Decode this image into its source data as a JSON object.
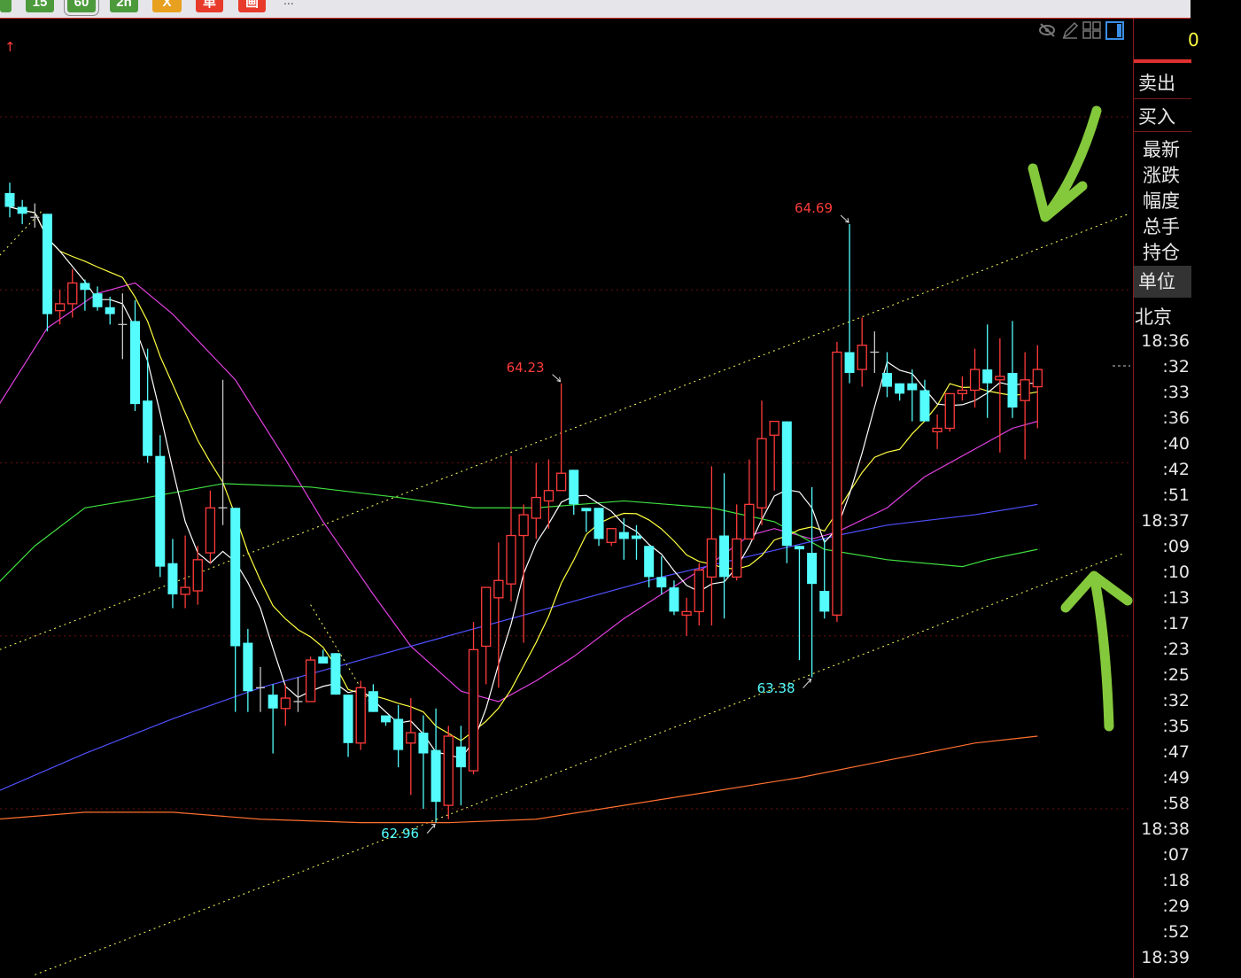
{
  "toolbar": {
    "buttons": [
      {
        "label": "",
        "color": "green"
      },
      {
        "label": "15",
        "color": "green"
      },
      {
        "label": "60",
        "color": "green",
        "selected": true
      },
      {
        "label": "2h",
        "color": "green"
      },
      {
        "label": "X",
        "color": "orange"
      },
      {
        "label": "单",
        "color": "red"
      },
      {
        "label": "画",
        "color": "red"
      }
    ],
    "more": "..."
  },
  "chart_icons": [
    "eye-slash-icon",
    "pencil-icon",
    "grid-icon",
    "panel-toggle-icon"
  ],
  "up_marker": "↑",
  "side_panel": {
    "top_value": "0",
    "sell": "卖出",
    "buy": "买入",
    "fields": [
      "最新",
      "涨跌",
      "幅度",
      "总手",
      "持仓"
    ],
    "unit": "单位",
    "region": "北京",
    "times": [
      "18:36",
      ":32",
      ":33",
      ":36",
      ":40",
      ":42",
      ":51",
      "18:37",
      ":09",
      ":10",
      ":13",
      ":17",
      ":23",
      ":25",
      ":32",
      ":35",
      ":47",
      ":49",
      ":58",
      "18:38",
      ":07",
      ":18",
      ":29",
      ":52",
      "18:39"
    ]
  },
  "colors": {
    "up": "#ff3b3b",
    "down": "#54fcfc",
    "doji": "#c8c8c8",
    "ma5": "#ffffff",
    "ma10": "#ffff40",
    "ma20": "#e040e0",
    "ma_green": "#40e040",
    "ma_blue": "#5050ff",
    "ma_orange": "#ff7030",
    "grid": "#6a1010",
    "trend": "#ffff60",
    "annotation": "#84c83c"
  },
  "chart_data": {
    "type": "candlestick",
    "ylim": [
      62.5,
      65.05
    ],
    "grid_levels": [
      65.0,
      64.5,
      64.0,
      63.5,
      63.0
    ],
    "candles_ohlc": [
      [
        64.78,
        64.81,
        64.71,
        64.74
      ],
      [
        64.74,
        64.76,
        64.69,
        64.72
      ],
      [
        64.71,
        64.75,
        64.68,
        64.71
      ],
      [
        64.72,
        64.72,
        64.38,
        64.43
      ],
      [
        64.44,
        64.5,
        64.4,
        64.46
      ],
      [
        64.46,
        64.56,
        64.42,
        64.52
      ],
      [
        64.52,
        64.53,
        64.44,
        64.5
      ],
      [
        64.49,
        64.51,
        64.44,
        64.45
      ],
      [
        64.45,
        64.48,
        64.4,
        64.43
      ],
      [
        64.4,
        64.49,
        64.3,
        64.4
      ],
      [
        64.41,
        64.47,
        64.15,
        64.17
      ],
      [
        64.18,
        64.33,
        64.0,
        64.02
      ],
      [
        64.02,
        64.08,
        63.67,
        63.7
      ],
      [
        63.71,
        63.78,
        63.58,
        63.62
      ],
      [
        63.62,
        63.79,
        63.58,
        63.64
      ],
      [
        63.63,
        63.76,
        63.59,
        63.72
      ],
      [
        63.74,
        63.92,
        63.71,
        63.87
      ],
      [
        63.87,
        64.24,
        63.82,
        63.87
      ],
      [
        63.87,
        63.87,
        63.28,
        63.47
      ],
      [
        63.48,
        63.52,
        63.28,
        63.34
      ],
      [
        63.35,
        63.41,
        63.28,
        63.35
      ],
      [
        63.33,
        63.36,
        63.16,
        63.29
      ],
      [
        63.29,
        63.36,
        63.24,
        63.32
      ],
      [
        63.31,
        63.38,
        63.28,
        63.31
      ],
      [
        63.31,
        63.44,
        63.31,
        63.43
      ],
      [
        63.44,
        63.46,
        63.42,
        63.42
      ],
      [
        63.45,
        63.45,
        63.33,
        63.33
      ],
      [
        63.33,
        63.33,
        63.15,
        63.19
      ],
      [
        63.19,
        63.37,
        63.17,
        63.35
      ],
      [
        63.34,
        63.36,
        63.28,
        63.28
      ],
      [
        63.27,
        63.27,
        63.24,
        63.25
      ],
      [
        63.26,
        63.3,
        63.12,
        63.17
      ],
      [
        63.19,
        63.32,
        63.04,
        63.22
      ],
      [
        63.22,
        63.27,
        63.0,
        63.16
      ],
      [
        63.17,
        63.29,
        62.96,
        63.02
      ],
      [
        63.01,
        63.24,
        62.97,
        63.21
      ],
      [
        63.18,
        63.24,
        63.01,
        63.12
      ],
      [
        63.11,
        63.54,
        63.1,
        63.46
      ],
      [
        63.47,
        63.64,
        63.36,
        63.64
      ],
      [
        63.61,
        63.77,
        63.35,
        63.66
      ],
      [
        63.65,
        64.02,
        63.6,
        63.79
      ],
      [
        63.79,
        63.88,
        63.48,
        63.85
      ],
      [
        63.84,
        64.0,
        63.78,
        63.9
      ],
      [
        63.89,
        64.01,
        63.81,
        63.92
      ],
      [
        63.92,
        64.23,
        63.92,
        63.97
      ],
      [
        63.98,
        63.98,
        63.85,
        63.88
      ],
      [
        63.87,
        63.87,
        63.8,
        63.86
      ],
      [
        63.87,
        63.87,
        63.76,
        63.78
      ],
      [
        63.77,
        63.81,
        63.76,
        63.81
      ],
      [
        63.8,
        63.84,
        63.72,
        63.78
      ],
      [
        63.79,
        63.82,
        63.72,
        63.78
      ],
      [
        63.76,
        63.76,
        63.64,
        63.67
      ],
      [
        63.67,
        63.73,
        63.62,
        63.64
      ],
      [
        63.64,
        63.66,
        63.56,
        63.57
      ],
      [
        63.56,
        63.61,
        63.5,
        63.57
      ],
      [
        63.57,
        63.71,
        63.53,
        63.69
      ],
      [
        63.67,
        63.99,
        63.53,
        63.78
      ],
      [
        63.79,
        63.97,
        63.55,
        63.67
      ],
      [
        63.67,
        63.88,
        63.66,
        63.78
      ],
      [
        63.78,
        64.01,
        63.78,
        63.88
      ],
      [
        63.87,
        64.18,
        63.82,
        64.07
      ],
      [
        64.08,
        64.12,
        63.92,
        64.12
      ],
      [
        64.12,
        64.12,
        63.71,
        63.76
      ],
      [
        63.76,
        63.76,
        63.43,
        63.75
      ],
      [
        63.74,
        63.93,
        63.38,
        63.65
      ],
      [
        63.63,
        63.78,
        63.55,
        63.57
      ],
      [
        63.56,
        64.35,
        63.54,
        64.32
      ],
      [
        64.32,
        64.69,
        64.23,
        64.26
      ],
      [
        64.27,
        64.42,
        64.22,
        64.34
      ],
      [
        64.32,
        64.38,
        64.26,
        64.32
      ],
      [
        64.26,
        64.32,
        64.19,
        64.22
      ],
      [
        64.23,
        64.23,
        64.18,
        64.2
      ],
      [
        64.23,
        64.27,
        64.12,
        64.21
      ],
      [
        64.21,
        64.24,
        64.12,
        64.12
      ],
      [
        64.09,
        64.14,
        64.04,
        64.1
      ],
      [
        64.1,
        64.2,
        64.09,
        64.2
      ],
      [
        64.2,
        64.25,
        64.18,
        64.21
      ],
      [
        64.21,
        64.33,
        64.16,
        64.27
      ],
      [
        64.27,
        64.4,
        64.13,
        64.23
      ],
      [
        64.24,
        64.36,
        64.03,
        64.25
      ],
      [
        64.26,
        64.41,
        64.13,
        64.16
      ],
      [
        64.18,
        64.32,
        64.01,
        64.24
      ],
      [
        64.22,
        64.34,
        64.1,
        64.27
      ]
    ],
    "ma_lines": [
      {
        "color_key": "ma20",
        "points": [
          [
            0,
            64.16
          ],
          [
            4,
            64.39
          ],
          [
            8,
            64.49
          ],
          [
            11,
            64.52
          ],
          [
            14,
            64.43
          ],
          [
            19,
            64.24
          ],
          [
            23,
            64.01
          ],
          [
            26,
            63.83
          ],
          [
            30,
            63.62
          ],
          [
            33,
            63.47
          ],
          [
            37,
            63.34
          ],
          [
            40,
            63.31
          ],
          [
            43,
            63.37
          ],
          [
            46,
            63.44
          ],
          [
            50,
            63.55
          ],
          [
            53,
            63.62
          ],
          [
            57,
            63.71
          ],
          [
            60,
            63.79
          ],
          [
            62,
            63.81
          ],
          [
            65,
            63.78
          ],
          [
            67,
            63.8
          ],
          [
            71,
            63.87
          ],
          [
            74,
            63.96
          ],
          [
            78,
            64.04
          ],
          [
            81,
            64.1
          ],
          [
            83,
            64.12
          ]
        ]
      },
      {
        "color_key": "ma_green",
        "points": [
          [
            0,
            63.65
          ],
          [
            3,
            63.76
          ],
          [
            7,
            63.87
          ],
          [
            12,
            63.9
          ],
          [
            18,
            63.94
          ],
          [
            25,
            63.93
          ],
          [
            32,
            63.9
          ],
          [
            38,
            63.87
          ],
          [
            43,
            63.87
          ],
          [
            50,
            63.89
          ],
          [
            57,
            63.87
          ],
          [
            62,
            63.83
          ],
          [
            66,
            63.75
          ],
          [
            71,
            63.72
          ],
          [
            77,
            63.7
          ],
          [
            79,
            63.72
          ],
          [
            83,
            63.75
          ]
        ]
      },
      {
        "color_key": "ma_blue",
        "points": [
          [
            0,
            63.05
          ],
          [
            7,
            63.16
          ],
          [
            14,
            63.26
          ],
          [
            21,
            63.35
          ],
          [
            29,
            63.43
          ],
          [
            36,
            63.5
          ],
          [
            46,
            63.6
          ],
          [
            53,
            63.67
          ],
          [
            60,
            63.73
          ],
          [
            67,
            63.79
          ],
          [
            71,
            63.82
          ],
          [
            78,
            63.85
          ],
          [
            83,
            63.88
          ]
        ]
      },
      {
        "color_key": "ma_orange",
        "points": [
          [
            0,
            62.97
          ],
          [
            7,
            62.99
          ],
          [
            14,
            62.99
          ],
          [
            21,
            62.97
          ],
          [
            29,
            62.96
          ],
          [
            36,
            62.96
          ],
          [
            43,
            62.97
          ],
          [
            50,
            63.01
          ],
          [
            57,
            63.05
          ],
          [
            64,
            63.09
          ],
          [
            71,
            63.14
          ],
          [
            78,
            63.19
          ],
          [
            83,
            63.21
          ]
        ]
      }
    ],
    "trend_lines": [
      [
        [
          0.2,
          63.46
        ],
        [
          90.3,
          64.72
        ]
      ],
      [
        [
          3,
          62.52
        ],
        [
          90,
          63.74
        ]
      ],
      [
        [
          0.2,
          64.6
        ],
        [
          3.6,
          64.73
        ]
      ],
      [
        [
          25,
          63.59
        ],
        [
          30,
          63.29
        ]
      ]
    ],
    "annotations": [
      {
        "text": "64.69",
        "candle": 68,
        "kind": "high"
      },
      {
        "text": "64.23",
        "candle": 45,
        "kind": "high"
      },
      {
        "text": "63.38",
        "candle": 65,
        "kind": "low"
      },
      {
        "text": "62.96",
        "candle": 35,
        "kind": "low"
      }
    ]
  }
}
